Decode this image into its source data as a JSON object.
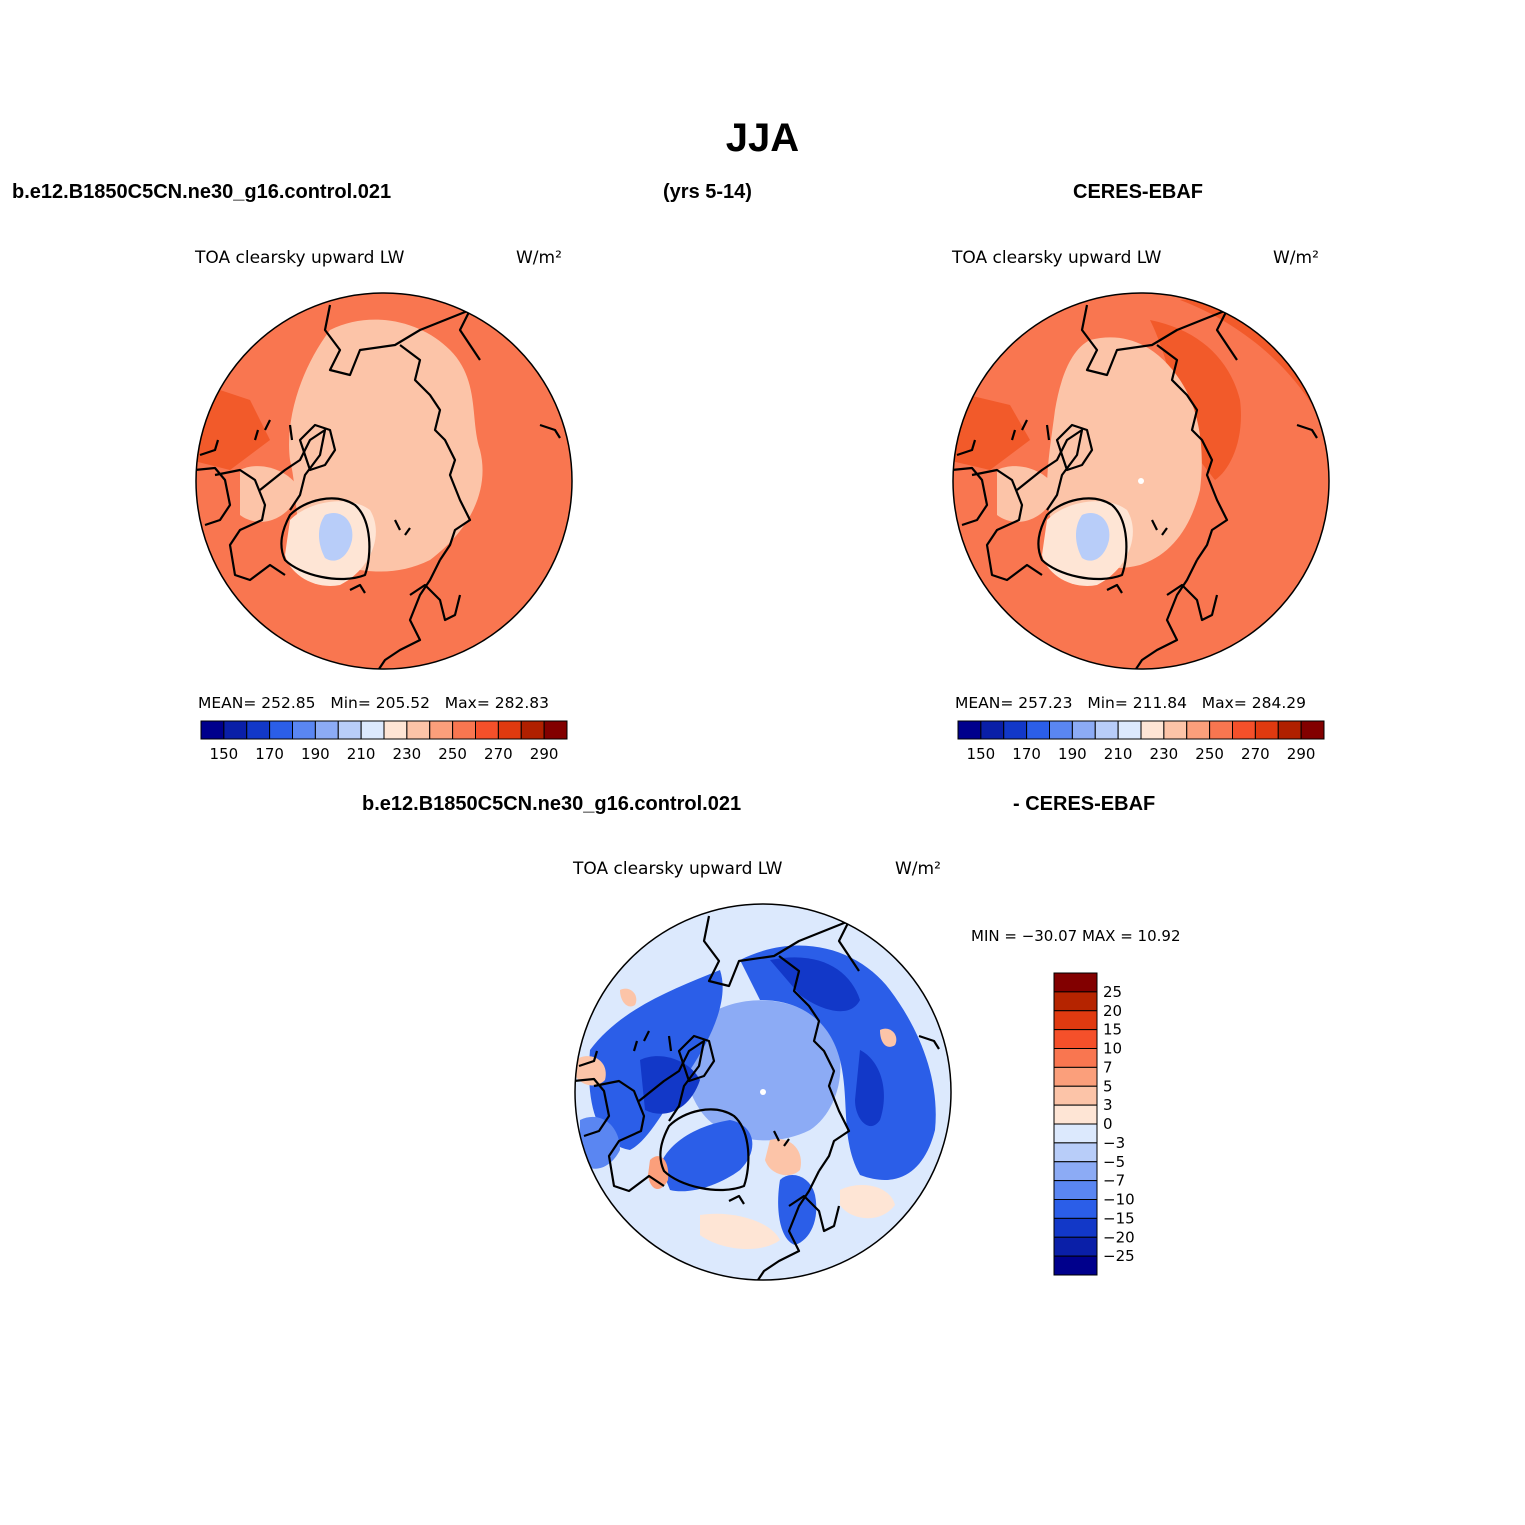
{
  "title": "JJA",
  "header": {
    "case": "b.e12.B1850C5CN.ne30_g16.control.021",
    "years": "(yrs 5-14)",
    "obs": "CERES-EBAF"
  },
  "diff_header": {
    "case": "b.e12.B1850C5CN.ne30_g16.control.021",
    "obs": "- CERES-EBAF"
  },
  "panels": [
    {
      "id": "model",
      "variable": "TOA clearsky upward LW",
      "units": "W/m²",
      "stats": {
        "mean_label": "MEAN=",
        "mean": "252.85",
        "min_label": "Min=",
        "min": "205.52",
        "max_label": "Max=",
        "max": "282.83"
      }
    },
    {
      "id": "obs",
      "variable": "TOA clearsky upward LW",
      "units": "W/m²",
      "stats": {
        "mean_label": "MEAN=",
        "mean": "257.23",
        "min_label": "Min=",
        "min": "211.84",
        "max_label": "Max=",
        "max": "284.29"
      }
    },
    {
      "id": "diff",
      "variable": "TOA clearsky upward LW",
      "units": "W/m²",
      "stats_text": "MIN = −30.07 MAX =   10.92"
    }
  ],
  "colorbars": {
    "abs": {
      "colors": [
        "#00008c",
        "#0a1fa8",
        "#1238c8",
        "#2b5ee8",
        "#5a86f2",
        "#8cabf5",
        "#b8cdf9",
        "#dce9fd",
        "#fee5d5",
        "#fcc4a8",
        "#fb9f7b",
        "#f97650",
        "#f5502a",
        "#e03a10",
        "#b02000",
        "#820000"
      ],
      "tick_labels": [
        "150",
        "170",
        "190",
        "210",
        "230",
        "250",
        "270",
        "290"
      ]
    },
    "diff": {
      "colors": [
        "#820000",
        "#b52400",
        "#e03a10",
        "#f5502a",
        "#f97650",
        "#fb9f7b",
        "#fcc4a8",
        "#fee5d5",
        "#dce9fd",
        "#b8cdf9",
        "#8cabf5",
        "#5a86f2",
        "#2b5ee8",
        "#1238c8",
        "#0a1fa8",
        "#00008c"
      ],
      "tick_labels": [
        "25",
        "20",
        "15",
        "10",
        "7",
        "5",
        "3",
        "0",
        "−3",
        "−5",
        "−7",
        "−10",
        "−15",
        "−20",
        "−25"
      ]
    }
  },
  "map_colors": {
    "warm_dark": "#f25a2a",
    "warm": "#f97650",
    "warm_light": "#fcc4a8",
    "pale_warm": "#fee5d5",
    "pale_blue": "#dce9fd",
    "light_blue": "#b8cdf9",
    "mid_blue": "#5a86f2",
    "blue": "#2b5ee8",
    "dark_blue": "#1238c8"
  }
}
